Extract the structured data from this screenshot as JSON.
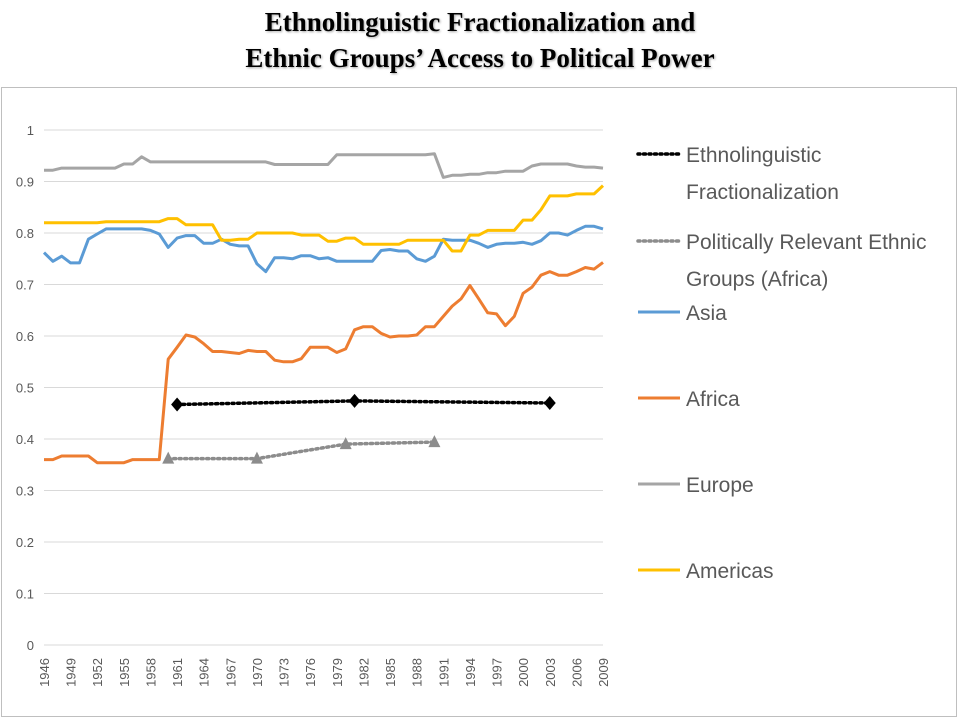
{
  "title": {
    "line1": "Ethnolinguistic Fractionalization and",
    "line2": "Ethnic Groups’ Access to Political Power"
  },
  "chart_data": {
    "type": "line",
    "title": "Ethnolinguistic Fractionalization and Ethnic Groups’ Access to Political Power",
    "xlabel": "",
    "ylabel": "",
    "xlim": [
      1946,
      2009
    ],
    "ylim": [
      0,
      1
    ],
    "grid": true,
    "legend_position": "right",
    "x_tick_labels": [
      "1946",
      "1949",
      "1952",
      "1955",
      "1958",
      "1961",
      "1964",
      "1967",
      "1970",
      "1973",
      "1976",
      "1979",
      "1982",
      "1985",
      "1988",
      "1991",
      "1994",
      "1997",
      "2000",
      "2003",
      "2006",
      "2009"
    ],
    "y_tick_labels": [
      "0",
      "0.1",
      "0.2",
      "0.3",
      "0.4",
      "0.5",
      "0.6",
      "0.7",
      "0.8",
      "0.9",
      "1"
    ],
    "x": [
      1946,
      1947,
      1948,
      1949,
      1950,
      1951,
      1952,
      1953,
      1954,
      1955,
      1956,
      1957,
      1958,
      1959,
      1960,
      1961,
      1962,
      1963,
      1964,
      1965,
      1966,
      1967,
      1968,
      1969,
      1970,
      1971,
      1972,
      1973,
      1974,
      1975,
      1976,
      1977,
      1978,
      1979,
      1980,
      1981,
      1982,
      1983,
      1984,
      1985,
      1986,
      1987,
      1988,
      1989,
      1990,
      1991,
      1992,
      1993,
      1994,
      1995,
      1996,
      1997,
      1998,
      1999,
      2000,
      2001,
      2002,
      2003,
      2004,
      2005,
      2006,
      2007,
      2008,
      2009
    ],
    "series": [
      {
        "name": "Asia",
        "style": "solid",
        "color": "#5b9bd5",
        "values": [
          0.762,
          0.745,
          0.755,
          0.742,
          0.742,
          0.788,
          0.798,
          0.808,
          0.808,
          0.808,
          0.808,
          0.808,
          0.805,
          0.798,
          0.772,
          0.79,
          0.795,
          0.795,
          0.78,
          0.78,
          0.788,
          0.778,
          0.775,
          0.775,
          0.74,
          0.725,
          0.752,
          0.752,
          0.75,
          0.756,
          0.756,
          0.75,
          0.752,
          0.745,
          0.745,
          0.745,
          0.745,
          0.745,
          0.766,
          0.768,
          0.765,
          0.765,
          0.75,
          0.745,
          0.755,
          0.788,
          0.786,
          0.786,
          0.786,
          0.78,
          0.772,
          0.778,
          0.78,
          0.78,
          0.782,
          0.778,
          0.785,
          0.8,
          0.8,
          0.796,
          0.805,
          0.813,
          0.813,
          0.808
        ]
      },
      {
        "name": "Africa",
        "style": "solid",
        "color": "#ed7d31",
        "values": [
          0.36,
          0.36,
          0.367,
          0.367,
          0.367,
          0.367,
          0.354,
          0.354,
          0.354,
          0.354,
          0.36,
          0.36,
          0.36,
          0.36,
          0.555,
          0.578,
          0.602,
          0.598,
          0.585,
          0.57,
          0.57,
          0.568,
          0.566,
          0.572,
          0.57,
          0.57,
          0.553,
          0.55,
          0.55,
          0.556,
          0.578,
          0.578,
          0.578,
          0.568,
          0.575,
          0.612,
          0.618,
          0.618,
          0.605,
          0.598,
          0.6,
          0.6,
          0.602,
          0.618,
          0.618,
          0.638,
          0.658,
          0.672,
          0.698,
          0.672,
          0.645,
          0.643,
          0.62,
          0.638,
          0.683,
          0.695,
          0.718,
          0.725,
          0.718,
          0.718,
          0.725,
          0.733,
          0.73,
          0.743
        ]
      },
      {
        "name": "Europe",
        "style": "solid",
        "color": "#a5a5a5",
        "values": [
          0.922,
          0.922,
          0.926,
          0.926,
          0.926,
          0.926,
          0.926,
          0.926,
          0.926,
          0.934,
          0.934,
          0.948,
          0.938,
          0.938,
          0.938,
          0.938,
          0.938,
          0.938,
          0.938,
          0.938,
          0.938,
          0.938,
          0.938,
          0.938,
          0.938,
          0.938,
          0.933,
          0.933,
          0.933,
          0.933,
          0.933,
          0.933,
          0.933,
          0.952,
          0.952,
          0.952,
          0.952,
          0.952,
          0.952,
          0.952,
          0.952,
          0.952,
          0.952,
          0.952,
          0.954,
          0.908,
          0.912,
          0.912,
          0.914,
          0.914,
          0.917,
          0.917,
          0.92,
          0.92,
          0.92,
          0.93,
          0.934,
          0.934,
          0.934,
          0.934,
          0.93,
          0.928,
          0.928,
          0.926
        ]
      },
      {
        "name": "Americas",
        "style": "solid",
        "color": "#ffc000",
        "values": [
          0.82,
          0.82,
          0.82,
          0.82,
          0.82,
          0.82,
          0.82,
          0.822,
          0.822,
          0.822,
          0.822,
          0.822,
          0.822,
          0.822,
          0.828,
          0.828,
          0.816,
          0.816,
          0.816,
          0.816,
          0.786,
          0.786,
          0.788,
          0.788,
          0.8,
          0.8,
          0.8,
          0.8,
          0.8,
          0.796,
          0.796,
          0.796,
          0.784,
          0.784,
          0.79,
          0.79,
          0.778,
          0.778,
          0.778,
          0.778,
          0.778,
          0.786,
          0.786,
          0.786,
          0.786,
          0.786,
          0.765,
          0.765,
          0.796,
          0.796,
          0.805,
          0.805,
          0.805,
          0.805,
          0.825,
          0.825,
          0.845,
          0.872,
          0.872,
          0.872,
          0.876,
          0.876,
          0.876,
          0.892
        ]
      }
    ],
    "point_series": [
      {
        "name": "Ethnolinguistic Fractionalization",
        "style": "dotted",
        "marker": "diamond",
        "color": "#000000",
        "points": [
          [
            1961,
            0.467
          ],
          [
            1981,
            0.474
          ],
          [
            2003,
            0.47
          ]
        ]
      },
      {
        "name": "Politically Relevant Ethnic Groups (Africa)",
        "style": "dotted",
        "marker": "triangle",
        "color": "#8c8c8c",
        "points": [
          [
            1960,
            0.362
          ],
          [
            1970,
            0.362
          ],
          [
            1980,
            0.39
          ],
          [
            1990,
            0.394
          ]
        ]
      }
    ],
    "legend": [
      {
        "label_lines": [
          "Ethnolinguistic",
          "Fractionalization"
        ],
        "style": "dotted",
        "color": "#000000"
      },
      {
        "label_lines": [
          "Politically Relevant Ethnic",
          "Groups (Africa)"
        ],
        "style": "dotted",
        "color": "#8c8c8c"
      },
      {
        "label_lines": [
          "Asia"
        ],
        "style": "solid",
        "color": "#5b9bd5"
      },
      {
        "label_lines": [
          "Africa"
        ],
        "style": "solid",
        "color": "#ed7d31"
      },
      {
        "label_lines": [
          "Europe"
        ],
        "style": "solid",
        "color": "#a5a5a5"
      },
      {
        "label_lines": [
          "Americas"
        ],
        "style": "solid",
        "color": "#ffc000"
      }
    ],
    "colors": {
      "grid": "#d9d9d9",
      "axis_text": "#595959",
      "legend_text": "#595959"
    }
  }
}
